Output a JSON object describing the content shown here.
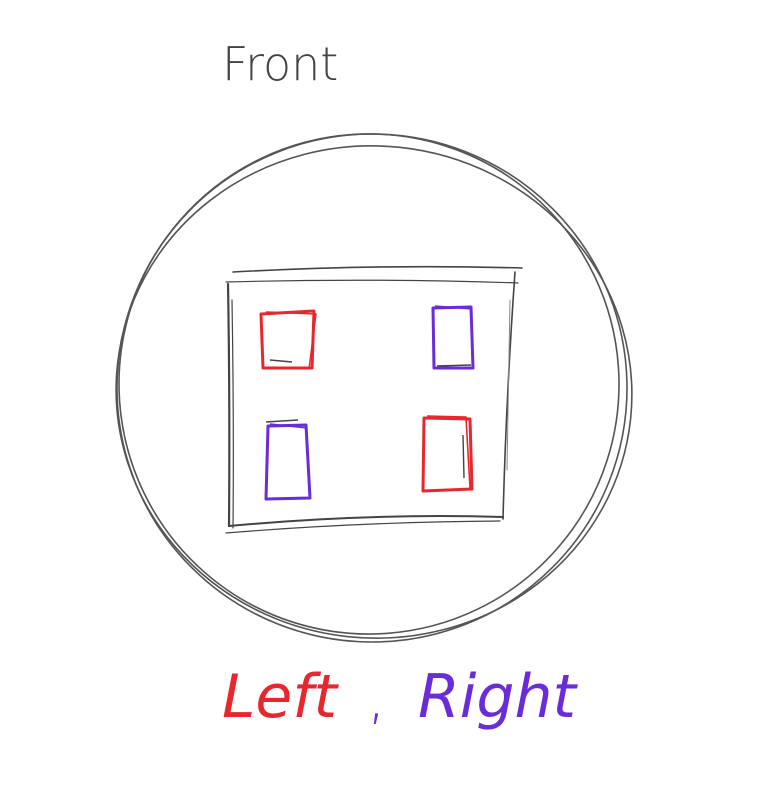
{
  "labels": {
    "top": "Front",
    "bottom_left": "Left",
    "separator": ",",
    "bottom_right": "Right"
  },
  "colors": {
    "stroke": "#555555",
    "left": "#e8262d",
    "right": "#6a2bd9",
    "background": "#ffffff"
  },
  "legend": [
    {
      "label_key": "bottom_left",
      "color_key": "left"
    },
    {
      "label_key": "bottom_right",
      "color_key": "right"
    }
  ]
}
